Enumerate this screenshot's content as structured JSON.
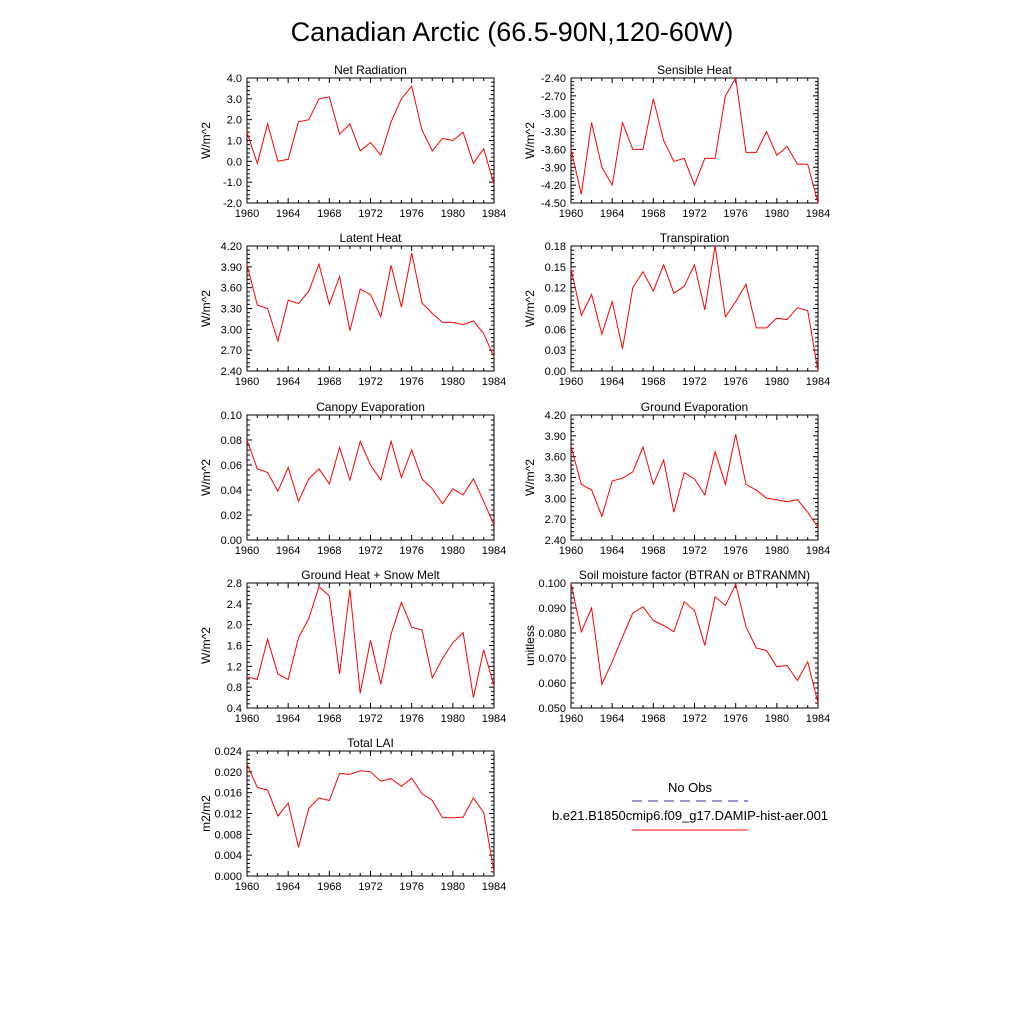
{
  "figure": {
    "title": "Canadian Arctic (66.5-90N,120-60W)",
    "legend": {
      "obs_label": "No Obs",
      "model_label": "b.e21.B1850cmip6.f09_g17.DAMIP-hist-aer.001",
      "obs_color": "#2b2bb0",
      "model_color": "#ff0000"
    }
  },
  "chart_data": [
    {
      "type": "line",
      "title": "Net Radiation",
      "ylabel": "W/m^2",
      "xlim": [
        1960,
        1984
      ],
      "ylim": [
        -2.0,
        4.0
      ],
      "xticks": [
        "1960",
        "1964",
        "1968",
        "1972",
        "1976",
        "1980",
        "1984"
      ],
      "yticks": [
        "-2.0",
        "-1.0",
        "0.0",
        "1.0",
        "2.0",
        "3.0",
        "4.0"
      ],
      "series": [
        {
          "color": "#ff0000",
          "x": [
            1960,
            1961,
            1962,
            1963,
            1964,
            1965,
            1966,
            1967,
            1968,
            1969,
            1970,
            1971,
            1972,
            1973,
            1974,
            1975,
            1976,
            1977,
            1978,
            1979,
            1980,
            1981,
            1982,
            1983,
            1984
          ],
          "values": [
            1.4,
            -0.1,
            1.8,
            0.0,
            0.1,
            1.9,
            2.0,
            3.0,
            3.1,
            1.3,
            1.8,
            0.5,
            0.9,
            0.3,
            1.9,
            3.0,
            3.6,
            1.5,
            0.5,
            1.1,
            1.0,
            1.4,
            -0.1,
            0.6,
            -1.1
          ]
        }
      ]
    },
    {
      "type": "line",
      "title": "Sensible Heat",
      "ylabel": "W/m^2",
      "xlim": [
        1960,
        1984
      ],
      "ylim": [
        -4.5,
        -2.4
      ],
      "xticks": [
        "1960",
        "1964",
        "1968",
        "1972",
        "1976",
        "1980",
        "1984"
      ],
      "yticks": [
        "-4.50",
        "-4.20",
        "-3.90",
        "-3.60",
        "-3.30",
        "-3.00",
        "-2.70",
        "-2.40"
      ],
      "series": [
        {
          "color": "#ff0000",
          "x": [
            1960,
            1961,
            1962,
            1963,
            1964,
            1965,
            1966,
            1967,
            1968,
            1969,
            1970,
            1971,
            1972,
            1973,
            1974,
            1975,
            1976,
            1977,
            1978,
            1979,
            1980,
            1981,
            1982,
            1983,
            1984
          ],
          "values": [
            -3.6,
            -4.35,
            -3.15,
            -3.9,
            -4.2,
            -3.15,
            -3.6,
            -3.6,
            -2.75,
            -3.45,
            -3.8,
            -3.75,
            -4.2,
            -3.75,
            -3.75,
            -2.7,
            -2.4,
            -3.65,
            -3.65,
            -3.3,
            -3.7,
            -3.55,
            -3.85,
            -3.85,
            -4.5
          ]
        }
      ]
    },
    {
      "type": "line",
      "title": "Latent Heat",
      "ylabel": "W/m^2",
      "xlim": [
        1960,
        1984
      ],
      "ylim": [
        2.4,
        4.2
      ],
      "xticks": [
        "1960",
        "1964",
        "1968",
        "1972",
        "1976",
        "1980",
        "1984"
      ],
      "yticks": [
        "2.40",
        "2.70",
        "3.00",
        "3.30",
        "3.60",
        "3.90",
        "4.20"
      ],
      "series": [
        {
          "color": "#ff0000",
          "x": [
            1960,
            1961,
            1962,
            1963,
            1964,
            1965,
            1966,
            1967,
            1968,
            1969,
            1970,
            1971,
            1972,
            1973,
            1974,
            1975,
            1976,
            1977,
            1978,
            1979,
            1980,
            1981,
            1982,
            1983,
            1984
          ],
          "values": [
            3.93,
            3.35,
            3.3,
            2.83,
            3.42,
            3.37,
            3.55,
            3.94,
            3.36,
            3.76,
            2.98,
            3.58,
            3.5,
            3.18,
            3.92,
            3.32,
            4.1,
            3.38,
            3.23,
            3.1,
            3.1,
            3.07,
            3.12,
            2.94,
            2.6
          ]
        }
      ]
    },
    {
      "type": "line",
      "title": "Transpiration",
      "ylabel": "W/m^2",
      "xlim": [
        1960,
        1984
      ],
      "ylim": [
        0.0,
        0.18
      ],
      "xticks": [
        "1960",
        "1964",
        "1968",
        "1972",
        "1976",
        "1980",
        "1984"
      ],
      "yticks": [
        "0.00",
        "0.03",
        "0.06",
        "0.09",
        "0.12",
        "0.15",
        "0.18"
      ],
      "series": [
        {
          "color": "#ff0000",
          "x": [
            1960,
            1961,
            1962,
            1963,
            1964,
            1965,
            1966,
            1967,
            1968,
            1969,
            1970,
            1971,
            1972,
            1973,
            1974,
            1975,
            1976,
            1977,
            1978,
            1979,
            1980,
            1981,
            1982,
            1983,
            1984
          ],
          "values": [
            0.147,
            0.08,
            0.11,
            0.053,
            0.1,
            0.032,
            0.12,
            0.143,
            0.115,
            0.153,
            0.112,
            0.122,
            0.153,
            0.088,
            0.18,
            0.078,
            0.1,
            0.125,
            0.062,
            0.062,
            0.076,
            0.074,
            0.091,
            0.087,
            0.0
          ]
        }
      ]
    },
    {
      "type": "line",
      "title": "Canopy Evaporation",
      "ylabel": "W/m^2",
      "xlim": [
        1960,
        1984
      ],
      "ylim": [
        0.0,
        0.1
      ],
      "xticks": [
        "1960",
        "1964",
        "1968",
        "1972",
        "1976",
        "1980",
        "1984"
      ],
      "yticks": [
        "0.00",
        "0.02",
        "0.04",
        "0.06",
        "0.08",
        "0.10"
      ],
      "series": [
        {
          "color": "#ff0000",
          "x": [
            1960,
            1961,
            1962,
            1963,
            1964,
            1965,
            1966,
            1967,
            1968,
            1969,
            1970,
            1971,
            1972,
            1973,
            1974,
            1975,
            1976,
            1977,
            1978,
            1979,
            1980,
            1981,
            1982,
            1983,
            1984
          ],
          "values": [
            0.08,
            0.057,
            0.054,
            0.039,
            0.058,
            0.031,
            0.049,
            0.057,
            0.045,
            0.074,
            0.048,
            0.079,
            0.06,
            0.048,
            0.079,
            0.05,
            0.072,
            0.049,
            0.041,
            0.029,
            0.041,
            0.036,
            0.049,
            0.031,
            0.012
          ]
        }
      ]
    },
    {
      "type": "line",
      "title": "Ground Evaporation",
      "ylabel": "W/m^2",
      "xlim": [
        1960,
        1984
      ],
      "ylim": [
        2.4,
        4.2
      ],
      "xticks": [
        "1960",
        "1964",
        "1968",
        "1972",
        "1976",
        "1980",
        "1984"
      ],
      "yticks": [
        "2.40",
        "2.70",
        "3.00",
        "3.30",
        "3.60",
        "3.90",
        "4.20"
      ],
      "series": [
        {
          "color": "#ff0000",
          "x": [
            1960,
            1961,
            1962,
            1963,
            1964,
            1965,
            1966,
            1967,
            1968,
            1969,
            1970,
            1971,
            1972,
            1973,
            1974,
            1975,
            1976,
            1977,
            1978,
            1979,
            1980,
            1981,
            1982,
            1983,
            1984
          ],
          "values": [
            3.75,
            3.2,
            3.12,
            2.74,
            3.25,
            3.29,
            3.38,
            3.74,
            3.2,
            3.55,
            2.8,
            3.37,
            3.28,
            3.05,
            3.67,
            3.2,
            3.92,
            3.2,
            3.12,
            3.0,
            2.98,
            2.95,
            2.98,
            2.8,
            2.58
          ]
        }
      ]
    },
    {
      "type": "line",
      "title": "Ground Heat + Snow Melt",
      "ylabel": "W/m^2",
      "xlim": [
        1960,
        1984
      ],
      "ylim": [
        0.4,
        2.8
      ],
      "xticks": [
        "1960",
        "1964",
        "1968",
        "1972",
        "1976",
        "1980",
        "1984"
      ],
      "yticks": [
        "0.4",
        "0.8",
        "1.2",
        "1.6",
        "2.0",
        "2.4",
        "2.8"
      ],
      "series": [
        {
          "color": "#ff0000",
          "x": [
            1960,
            1961,
            1962,
            1963,
            1964,
            1965,
            1966,
            1967,
            1968,
            1969,
            1970,
            1971,
            1972,
            1973,
            1974,
            1975,
            1976,
            1977,
            1978,
            1979,
            1980,
            1981,
            1982,
            1983,
            1984
          ],
          "values": [
            1.0,
            0.95,
            1.72,
            1.05,
            0.95,
            1.75,
            2.12,
            2.73,
            2.55,
            1.05,
            2.68,
            0.68,
            1.7,
            0.86,
            1.82,
            2.43,
            1.95,
            1.9,
            0.98,
            1.35,
            1.65,
            1.85,
            0.6,
            1.52,
            0.82
          ]
        }
      ]
    },
    {
      "type": "line",
      "title": "Soil moisture factor (BTRAN or BTRANMN)",
      "ylabel": "unitless",
      "xlim": [
        1960,
        1984
      ],
      "ylim": [
        0.05,
        0.1
      ],
      "xticks": [
        "1960",
        "1964",
        "1968",
        "1972",
        "1976",
        "1980",
        "1984"
      ],
      "yticks": [
        "0.050",
        "0.060",
        "0.070",
        "0.080",
        "0.090",
        "0.100"
      ],
      "series": [
        {
          "color": "#ff0000",
          "x": [
            1960,
            1961,
            1962,
            1963,
            1964,
            1965,
            1966,
            1967,
            1968,
            1969,
            1970,
            1971,
            1972,
            1973,
            1974,
            1975,
            1976,
            1977,
            1978,
            1979,
            1980,
            1981,
            1982,
            1983,
            1984
          ],
          "values": [
            0.1,
            0.0805,
            0.09,
            0.0595,
            0.0685,
            0.0785,
            0.088,
            0.0905,
            0.085,
            0.083,
            0.0805,
            0.0925,
            0.089,
            0.075,
            0.0945,
            0.091,
            0.0995,
            0.0825,
            0.074,
            0.073,
            0.0665,
            0.067,
            0.061,
            0.0685,
            0.052
          ]
        }
      ]
    },
    {
      "type": "line",
      "title": "Total LAI",
      "ylabel": "m2/m2",
      "xlim": [
        1960,
        1984
      ],
      "ylim": [
        0.0,
        0.024
      ],
      "xticks": [
        "1960",
        "1964",
        "1968",
        "1972",
        "1976",
        "1980",
        "1984"
      ],
      "yticks": [
        "0.000",
        "0.004",
        "0.008",
        "0.012",
        "0.016",
        "0.020",
        "0.024"
      ],
      "series": [
        {
          "color": "#ff0000",
          "x": [
            1960,
            1961,
            1962,
            1963,
            1964,
            1965,
            1966,
            1967,
            1968,
            1969,
            1970,
            1971,
            1972,
            1973,
            1974,
            1975,
            1976,
            1977,
            1978,
            1979,
            1980,
            1981,
            1982,
            1983,
            1984
          ],
          "values": [
            0.0215,
            0.017,
            0.0165,
            0.0115,
            0.014,
            0.0055,
            0.013,
            0.015,
            0.0145,
            0.0197,
            0.0195,
            0.0202,
            0.02,
            0.0182,
            0.0187,
            0.0172,
            0.0188,
            0.0158,
            0.0145,
            0.0112,
            0.0112,
            0.0113,
            0.015,
            0.0122,
            0.0008
          ]
        }
      ]
    }
  ]
}
